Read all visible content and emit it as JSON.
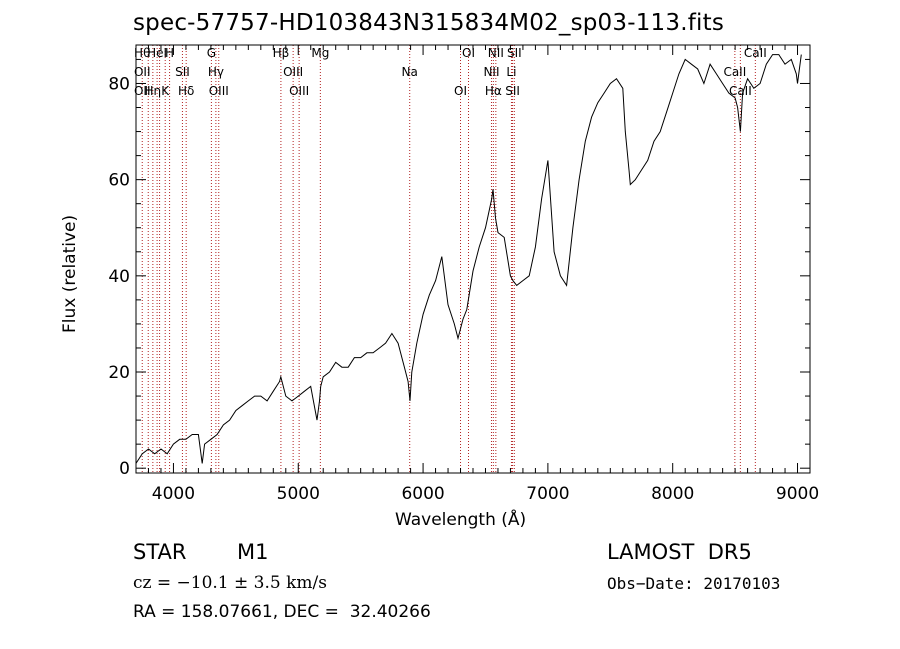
{
  "header": {
    "title": "spec-57757-HD103843N315834M02_sp03-113.fits"
  },
  "info": {
    "object_class": "STAR",
    "subclass": "M1",
    "cz": "cz = −10.1 ± 3.5 km/s",
    "coords": "RA = 158.07661, DEC =  32.40266",
    "survey": "LAMOST  DR5",
    "obs_date": "Obs−Date: 20170103"
  },
  "colors": {
    "line_marker": "#b22222",
    "spectrum": "#000000",
    "axes": "#000000"
  },
  "chart_data": {
    "type": "line",
    "title": "spec-57757-HD103843N315834M02_sp03-113.fits",
    "xlabel": "Wavelength (Å)",
    "ylabel": "Flux (relative)",
    "xlim": [
      3700,
      9100
    ],
    "ylim": [
      -1,
      88
    ],
    "xticks": [
      4000,
      5000,
      6000,
      7000,
      8000,
      9000
    ],
    "yticks": [
      0,
      20,
      40,
      60,
      80
    ],
    "grid": false,
    "legend": "none",
    "series": [
      {
        "x": [
          3700,
          3750,
          3800,
          3850,
          3900,
          3950,
          4000,
          4050,
          4100,
          4150,
          4200,
          4230,
          4250,
          4300,
          4350,
          4400,
          4450,
          4500,
          4550,
          4600,
          4650,
          4700,
          4750,
          4800,
          4850,
          4860,
          4900,
          4950,
          5000,
          5050,
          5100,
          5150,
          5170,
          5180,
          5200,
          5250,
          5300,
          5350,
          5400,
          5450,
          5500,
          5550,
          5600,
          5650,
          5700,
          5750,
          5800,
          5850,
          5880,
          5895,
          5910,
          5950,
          6000,
          6050,
          6100,
          6150,
          6200,
          6250,
          6280,
          6300,
          6320,
          6350,
          6400,
          6450,
          6500,
          6550,
          6560,
          6580,
          6600,
          6650,
          6700,
          6720,
          6750,
          6800,
          6850,
          6900,
          6950,
          7000,
          7050,
          7100,
          7150,
          7200,
          7250,
          7300,
          7350,
          7400,
          7450,
          7500,
          7550,
          7600,
          7620,
          7650,
          7660,
          7700,
          7750,
          7800,
          7850,
          7900,
          7950,
          8000,
          8050,
          8100,
          8150,
          8200,
          8250,
          8300,
          8350,
          8400,
          8450,
          8500,
          8520,
          8542,
          8560,
          8600,
          8650,
          8700,
          8750,
          8800,
          8850,
          8900,
          8950,
          8990,
          9000,
          9030
        ],
        "y": [
          1,
          3,
          4,
          3,
          4,
          3,
          5,
          6,
          6,
          7,
          7,
          1,
          5,
          6,
          7,
          9,
          10,
          12,
          13,
          14,
          15,
          15,
          14,
          16,
          18,
          19,
          15,
          14,
          15,
          16,
          17,
          10,
          14,
          17,
          19,
          20,
          22,
          21,
          21,
          23,
          23,
          24,
          24,
          25,
          26,
          28,
          26,
          21,
          18,
          14,
          20,
          26,
          32,
          36,
          39,
          44,
          34,
          30,
          27,
          29,
          31,
          33,
          41,
          46,
          50,
          56,
          58,
          52,
          49,
          48,
          40,
          39,
          38,
          39,
          40,
          46,
          56,
          64,
          45,
          40,
          38,
          50,
          60,
          68,
          73,
          76,
          78,
          80,
          81,
          79,
          70,
          62,
          59,
          60,
          62,
          64,
          68,
          70,
          74,
          78,
          82,
          85,
          84,
          83,
          80,
          84,
          82,
          80,
          78,
          77,
          75,
          70,
          78,
          81,
          79,
          80,
          84,
          86,
          86,
          84,
          85,
          82,
          80,
          86
        ]
      }
    ],
    "line_markers": [
      {
        "x": 3750,
        "labels": [
          "Hθ",
          "OII",
          "OII"
        ]
      },
      {
        "x": 3798,
        "labels": []
      },
      {
        "x": 3835,
        "labels": [
          "Hη"
        ]
      },
      {
        "x": 3869,
        "labels": [
          "HeI"
        ]
      },
      {
        "x": 3889,
        "labels": []
      },
      {
        "x": 3934,
        "labels": [
          "K"
        ]
      },
      {
        "x": 3969,
        "labels": [
          "H"
        ]
      },
      {
        "x": 4072,
        "labels": [
          "SII"
        ]
      },
      {
        "x": 4102,
        "labels": [
          "Hδ"
        ]
      },
      {
        "x": 4304,
        "labels": [
          "G"
        ]
      },
      {
        "x": 4340,
        "labels": [
          "Hγ"
        ]
      },
      {
        "x": 4363,
        "labels": [
          "OIII"
        ]
      },
      {
        "x": 4861,
        "labels": [
          "Hβ"
        ]
      },
      {
        "x": 4959,
        "labels": [
          "OIII"
        ]
      },
      {
        "x": 5007,
        "labels": [
          "OIII"
        ]
      },
      {
        "x": 5177,
        "labels": [
          "Mg"
        ]
      },
      {
        "x": 5893,
        "labels": [
          "Na"
        ]
      },
      {
        "x": 6300,
        "labels": [
          "OI"
        ]
      },
      {
        "x": 6364,
        "labels": [
          "OI"
        ]
      },
      {
        "x": 6548,
        "labels": [
          "NII"
        ]
      },
      {
        "x": 6563,
        "labels": [
          "Hα"
        ]
      },
      {
        "x": 6583,
        "labels": [
          "NII"
        ]
      },
      {
        "x": 6708,
        "labels": [
          "Li"
        ]
      },
      {
        "x": 6717,
        "labels": [
          "SII"
        ]
      },
      {
        "x": 6731,
        "labels": [
          "SII"
        ]
      },
      {
        "x": 8498,
        "labels": [
          "CaII"
        ]
      },
      {
        "x": 8542,
        "labels": [
          "CaII"
        ]
      },
      {
        "x": 8662,
        "labels": [
          "CaII"
        ]
      }
    ]
  }
}
